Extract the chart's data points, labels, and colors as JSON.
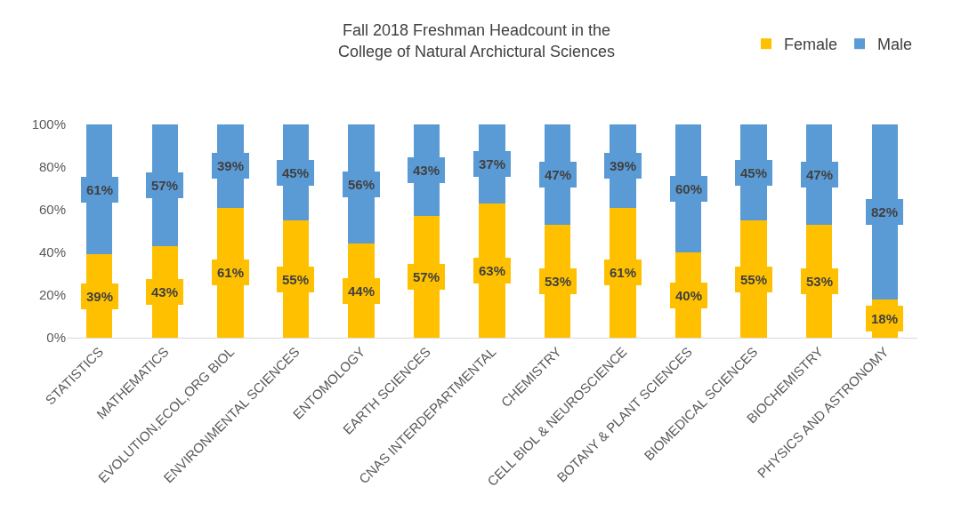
{
  "chart_data": {
    "type": "bar",
    "title": "Fall 2018 Freshman Headcount in the\nCollege of Natural Archictural Sciences",
    "stacked": true,
    "categories": [
      "STATISTICS",
      "MATHEMATICS",
      "EVOLUTION,ECOL,ORG BIOL",
      "ENVIRONMENTAL SCIENCES",
      "ENTOMOLOGY",
      "EARTH SCIENCES",
      "CNAS INTERDEPARTMENTAL",
      "CHEMISTRY",
      "CELL BIOL & NEUROSCIENCE",
      "BOTANY & PLANT SCIENCES",
      "BIOMEDICAL SCIENCES",
      "BIOCHEMISTRY",
      "PHYSICS AND ASTRONOMY"
    ],
    "series": [
      {
        "name": "Female",
        "color": "#ffc000",
        "values": [
          39,
          43,
          61,
          55,
          44,
          57,
          63,
          53,
          61,
          40,
          55,
          53,
          18
        ],
        "value_labels": [
          "39%",
          "43%",
          "61%",
          "55%",
          "44%",
          "57%",
          "63%",
          "53%",
          "61%",
          "40%",
          "55%",
          "53%",
          "18%"
        ]
      },
      {
        "name": "Male",
        "color": "#5b9bd5",
        "values": [
          61,
          57,
          39,
          45,
          56,
          43,
          37,
          47,
          39,
          60,
          45,
          47,
          82
        ],
        "value_labels": [
          "61%",
          "57%",
          "39%",
          "45%",
          "56%",
          "43%",
          "37%",
          "47%",
          "39%",
          "60%",
          "45%",
          "47%",
          "82%"
        ]
      }
    ],
    "ylim": [
      0,
      100
    ],
    "yticks": [
      {
        "value": 0,
        "label": "0%"
      },
      {
        "value": 20,
        "label": "20%"
      },
      {
        "value": 40,
        "label": "40%"
      },
      {
        "value": 60,
        "label": "60%"
      },
      {
        "value": 80,
        "label": "80%"
      },
      {
        "value": 100,
        "label": "100%"
      }
    ],
    "grid": false,
    "legend": "top right"
  }
}
